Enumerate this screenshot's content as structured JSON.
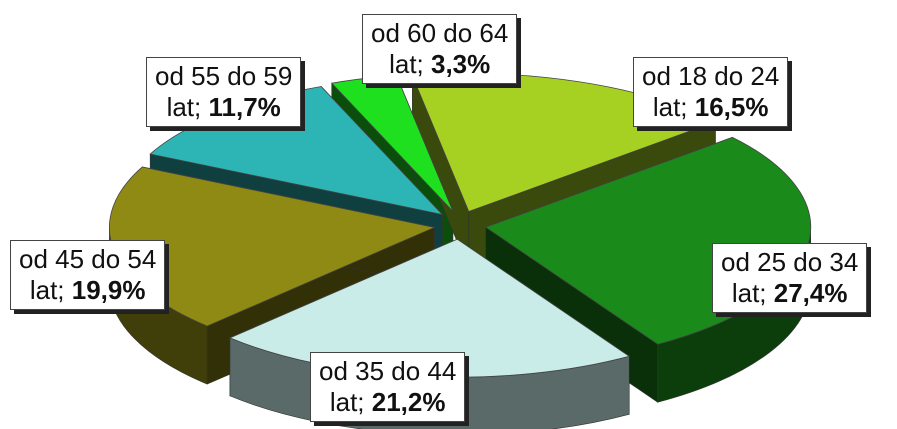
{
  "chart_data": {
    "type": "pie",
    "style": "3d-exploded",
    "slices": [
      {
        "label": "od 18 do 24",
        "unit_word": "lat;",
        "value": 16.5,
        "value_text": "16,5%",
        "color": "#a6d123"
      },
      {
        "label": "od 25 do 34",
        "unit_word": "lat;",
        "value": 27.4,
        "value_text": "27,4%",
        "color": "#1a8a1a"
      },
      {
        "label": "od 35 do 44",
        "unit_word": "lat;",
        "value": 21.2,
        "value_text": "21,2%",
        "color": "#c9ece9"
      },
      {
        "label": "od 45 do 54",
        "unit_word": "lat;",
        "value": 19.9,
        "value_text": "19,9%",
        "color": "#8f8a14"
      },
      {
        "label": "od 55 do 59",
        "unit_word": "lat;",
        "value": 11.7,
        "value_text": "11,7%",
        "color": "#2db5b5"
      },
      {
        "label": "od 60 do 64",
        "unit_word": "lat;",
        "value": 3.3,
        "value_text": "3,3%",
        "color": "#1ee01e"
      }
    ],
    "legend": "none"
  }
}
